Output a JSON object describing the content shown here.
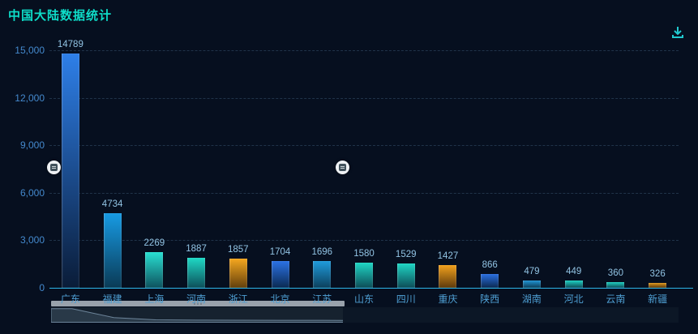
{
  "header": {
    "title": "中国大陆数据统计"
  },
  "toolbar": {
    "download_icon": "download-icon"
  },
  "chart_data": {
    "type": "bar",
    "title": "中国大陆数据统计",
    "categories": [
      "广东",
      "福建",
      "上海",
      "河南",
      "浙江",
      "北京",
      "江苏",
      "山东",
      "四川",
      "重庆",
      "陕西",
      "湖南",
      "河北",
      "云南",
      "新疆"
    ],
    "values": [
      14789,
      4734,
      2269,
      1887,
      1857,
      1704,
      1696,
      1580,
      1529,
      1427,
      866,
      479,
      449,
      360,
      326
    ],
    "xlabel": "",
    "ylabel": "",
    "ylim": [
      0,
      15000
    ],
    "y_ticks": [
      "0",
      "3,000",
      "6,000",
      "9,000",
      "12,000",
      "15,000"
    ],
    "grid": "dashed horizontal gridlines",
    "legend": "none",
    "value_labels_shown": true,
    "bar_colors": [
      [
        "#2e7fe8",
        "#0a1c38"
      ],
      [
        "#179be4",
        "#0a3a55"
      ],
      [
        "#29e0d2",
        "#0e525e"
      ],
      [
        "#1fd9c5",
        "#0d4f5a"
      ],
      [
        "#f5a71f",
        "#63400d"
      ],
      [
        "#2b72e6",
        "#0b2a52"
      ],
      [
        "#1f9bdc",
        "#0c405c"
      ],
      [
        "#1fd6c4",
        "#0d4d58"
      ],
      [
        "#1fd6c4",
        "#0d4d58"
      ],
      [
        "#f2a11d",
        "#5e3a0c"
      ],
      [
        "#2b70e2",
        "#0b2950"
      ],
      [
        "#2094d4",
        "#0c3d57"
      ],
      [
        "#1dd1c1",
        "#0d4b57"
      ],
      [
        "#1dd1c1",
        "#0d4b57"
      ],
      [
        "#e29a1c",
        "#55350b"
      ]
    ]
  },
  "colors": {
    "background": "#060f1f",
    "title": "#0edcc8",
    "y_axis_label": "#4489cd",
    "x_axis_label": "#4e9ed2",
    "value_label": "#92c4e4",
    "x_axis_line": "#2cb5e8",
    "gridline": "#203349",
    "download_icon": "#21c9cf",
    "scrollbar_thumb": "#99a2ac",
    "slider_handle": "#eef1f4"
  }
}
